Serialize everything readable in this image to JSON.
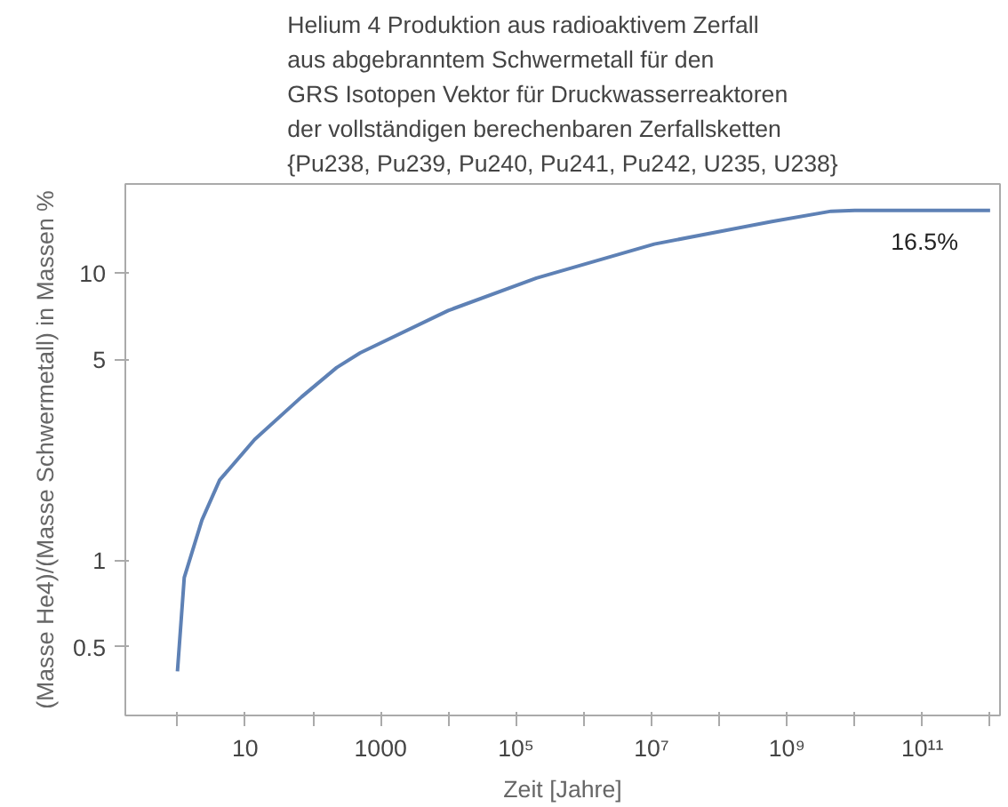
{
  "chart_data": {
    "type": "line",
    "title": "Helium 4 Produktion aus radioaktivem Zerfall\naus abgebranntem Schwermetall für den\nGRS Isotopen Vektor für Druckwasserreaktoren\nder vollständigen berechenbaren Zerfallsketten\n{Pu238, Pu239, Pu240, Pu241, Pu242, U235, U238}",
    "xlabel": "Zeit [Jahre]",
    "ylabel": "(Masse He4)/(Masse Schwermetall) in Massen %",
    "log": "xy",
    "grid": false,
    "marker": "none",
    "line_style": "solid",
    "x": [
      1,
      1.26,
      2.3,
      4.2,
      13.8,
      68,
      224,
      500,
      10000,
      200000,
      11000000,
      600000000,
      4500000000,
      10000000000,
      1000000000000
    ],
    "series": [
      {
        "color": "#5e81b5",
        "values": [
          0.41,
          0.87,
          1.38,
          1.9,
          2.63,
          3.7,
          4.68,
          5.27,
          7.4,
          9.6,
          12.6,
          15.1,
          16.4,
          16.5,
          16.5
        ]
      }
    ],
    "xlim": [
      0.17,
      1400000000000.0
    ],
    "ylim": [
      0.288,
      20.4
    ],
    "xticks": [
      {
        "value": 1,
        "label": null
      },
      10,
      {
        "value": 100,
        "label": null
      },
      1000,
      {
        "value": 10000,
        "label": null
      },
      {
        "value": 100000,
        "label": "10⁵"
      },
      {
        "value": 1000000,
        "label": null
      },
      {
        "value": 10000000,
        "label": "10⁷"
      },
      {
        "value": 100000000,
        "label": null
      },
      {
        "value": 1000000000,
        "label": "10⁹"
      },
      {
        "value": 10000000000,
        "label": null
      },
      {
        "value": 100000000000,
        "label": "10¹¹"
      },
      {
        "value": 1000000000000,
        "label": null
      }
    ],
    "yticks": [
      0.5,
      1,
      5,
      10
    ],
    "annotations": [
      "16.5%"
    ]
  }
}
